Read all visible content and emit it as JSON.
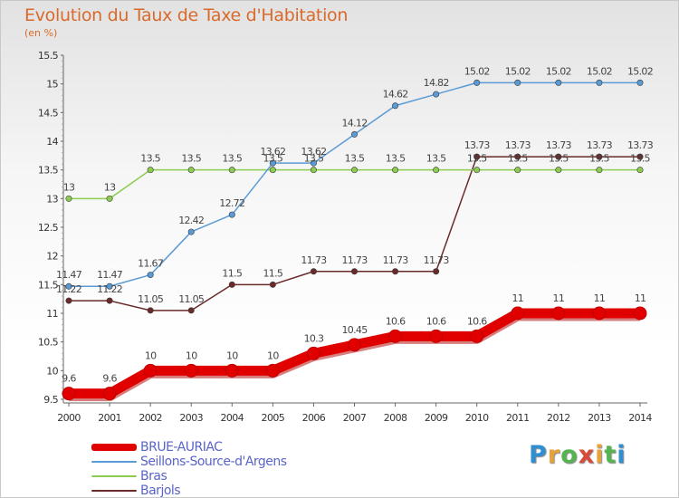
{
  "header": {
    "title": "Evolution du Taux de Taxe d'Habitation",
    "subtitle": "(en %)"
  },
  "logo": {
    "letters": [
      "P",
      "r",
      "o",
      "x",
      "i",
      "t",
      "i"
    ],
    "colors": [
      "#2f8fd1",
      "#e8a23a",
      "#56b450",
      "#d94a3a",
      "#e8a23a",
      "#56b450",
      "#2f8fd1"
    ]
  },
  "chart_data": {
    "type": "line",
    "x": [
      2000,
      2001,
      2002,
      2003,
      2004,
      2005,
      2006,
      2007,
      2008,
      2009,
      2010,
      2011,
      2012,
      2013,
      2014
    ],
    "ylim": [
      9.5,
      15.5
    ],
    "yticks": [
      9.5,
      10,
      10.5,
      11,
      11.5,
      12,
      12.5,
      13,
      13.5,
      14,
      14.5,
      15,
      15.5
    ],
    "grid": false,
    "legend_position": "bottom-left",
    "series": [
      {
        "name": "BRUE-AURIAC",
        "color": "#e00000",
        "values": [
          9.6,
          9.6,
          10,
          10,
          10,
          10,
          10.3,
          10.45,
          10.6,
          10.6,
          10.6,
          11,
          11,
          11,
          11
        ],
        "labels": [
          "9.6",
          "9.6",
          "10",
          "10",
          "10",
          "10",
          "10.3",
          "10.45",
          "10.6",
          "10.6",
          "10.6",
          "11",
          "11",
          "11",
          "11"
        ]
      },
      {
        "name": "Seillons-Source-d'Argens",
        "color": "#5a9bd5",
        "values": [
          11.47,
          11.47,
          11.67,
          12.42,
          12.72,
          13.62,
          13.62,
          14.12,
          14.62,
          14.82,
          15.02,
          15.02,
          15.02,
          15.02,
          15.02
        ],
        "labels": [
          "11.47",
          "11.47",
          "11.67",
          "12.42",
          "12.72",
          "13.62",
          "13.62",
          "14.12",
          "14.62",
          "14.82",
          "15.02",
          "15.02",
          "15.02",
          "15.02",
          "15.02"
        ]
      },
      {
        "name": "Bras",
        "color": "#8ccc50",
        "values": [
          13,
          13,
          13.5,
          13.5,
          13.5,
          13.5,
          13.5,
          13.5,
          13.5,
          13.5,
          13.5,
          13.5,
          13.5,
          13.5,
          13.5
        ],
        "labels": [
          "13",
          "13",
          "13.5",
          "13.5",
          "13.5",
          "13.5",
          "13.5",
          "13.5",
          "13.5",
          "13.5",
          "13.5",
          "13.5",
          "13.5",
          "13.5",
          "13.5"
        ]
      },
      {
        "name": "Barjols",
        "color": "#6b2a2a",
        "values": [
          11.22,
          11.22,
          11.05,
          11.05,
          11.5,
          11.5,
          11.73,
          11.73,
          11.73,
          11.73,
          13.73,
          13.73,
          13.73,
          13.73,
          13.73
        ],
        "labels": [
          "11.22",
          "11.22",
          "11.05",
          "11.05",
          "11.5",
          "11.5",
          "11.73",
          "11.73",
          "11.73",
          "11.73",
          "13.73",
          "13.73",
          "13.73",
          "13.73",
          "13.73"
        ]
      }
    ]
  }
}
